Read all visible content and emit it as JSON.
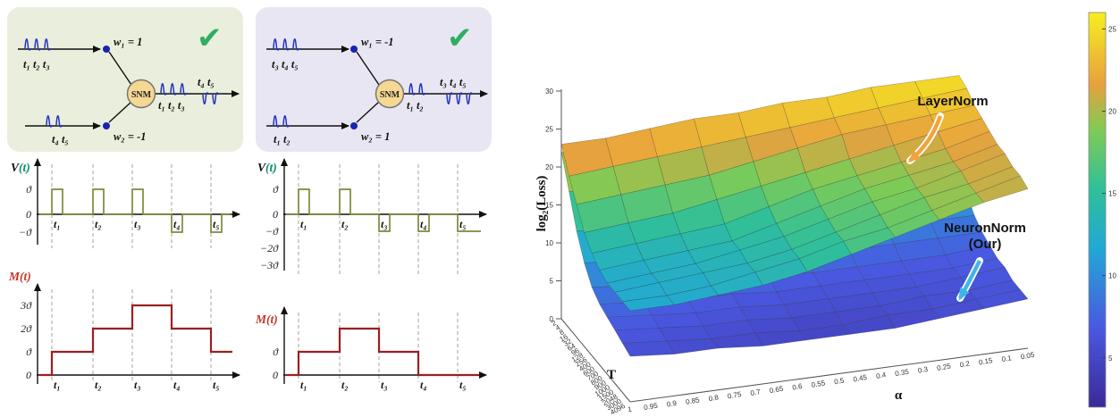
{
  "left": {
    "panels": [
      {
        "node": "SNM",
        "check": "✔",
        "in_top": "t₁ t₂ t₃",
        "in_bottom": "t₄ t₅",
        "w1": "w₁ = 1",
        "w2": "w₂ = -1",
        "out_up": "t₁ t₂ t₃",
        "out_down": "t₄ t₅"
      },
      {
        "node": "SNM",
        "check": "✔",
        "in_top": "t₃ t₄ t₅",
        "in_bottom": "t₁ t₂",
        "w1": "w₁ = -1",
        "w2": "w₂ = 1",
        "out_up": "t₁ t₂",
        "out_down": "t₃ t₄ t₅"
      }
    ],
    "v_plots": [
      {
        "label_main": "V",
        "label_paren": "(t)",
        "yticks": [
          "ϑ",
          "0",
          "−ϑ"
        ],
        "xticks": [
          "t₁",
          "t₂",
          "t₃",
          "t₄",
          "t₅"
        ],
        "pulses": [
          1,
          1,
          1,
          -1,
          -1
        ],
        "tail": 0
      },
      {
        "label_main": "V",
        "label_paren": "(t)",
        "yticks": [
          "ϑ",
          "0",
          "−ϑ",
          "−2ϑ",
          "−3ϑ"
        ],
        "xticks": [
          "t₁",
          "t₂",
          "t₃",
          "t₄",
          "t₅"
        ],
        "pulses": [
          1,
          1,
          -1,
          -1,
          -1
        ],
        "tail": -1
      }
    ],
    "m_plots": [
      {
        "label_main": "M",
        "label_paren": "(t)",
        "yticks": [
          "3ϑ",
          "2ϑ",
          "ϑ",
          "0"
        ],
        "xticks": [
          "t₁",
          "t₂",
          "t₃",
          "t₄",
          "t₅"
        ],
        "levels": [
          0,
          1,
          2,
          3,
          2,
          1
        ]
      },
      {
        "label_main": "M",
        "label_paren": "(t)",
        "yticks": [
          "ϑ",
          "0"
        ],
        "xticks": [
          "t₁",
          "t₂",
          "t₃",
          "t₄",
          "t₅"
        ],
        "levels": [
          0,
          1,
          2,
          1,
          0,
          0
        ]
      }
    ]
  },
  "chart_data": {
    "type": "surface",
    "title": "",
    "xlabel": "α",
    "ylabel": "T",
    "zlabel": "log₂(Loss)",
    "zlim": [
      0,
      30
    ],
    "z_ticks": [
      0,
      5,
      10,
      15,
      20,
      25,
      30
    ],
    "t_ticks": [
      "2",
      "4",
      "8",
      "16",
      "32",
      "64",
      "96",
      "128",
      "256",
      "400",
      "600",
      "700",
      "800",
      "900",
      "1000",
      "1500",
      "2048",
      "3000",
      "4096"
    ],
    "alpha_ticks": [
      "1",
      "0.95",
      "0.9",
      "0.85",
      "0.8",
      "0.75",
      "0.7",
      "0.65",
      "0.6",
      "0.55",
      "0.5",
      "0.45",
      "0.4",
      "0.35",
      "0.3",
      "0.25",
      "0.2",
      "0.15",
      "0.1",
      "0.05"
    ],
    "colorbar_ticks": [
      5,
      10,
      15,
      20,
      25
    ],
    "series": [
      {
        "name": "LayerNorm",
        "grid": [
          [
            23,
            23,
            23.5,
            24,
            24,
            24.5,
            24.5,
            25,
            25,
            25
          ],
          [
            20,
            20.5,
            21,
            21.5,
            22,
            22.5,
            23,
            23.5,
            24,
            24.5
          ],
          [
            17.5,
            18,
            18.5,
            19,
            20,
            21,
            22,
            22.5,
            23,
            23.5
          ],
          [
            15,
            15.5,
            16,
            17,
            18,
            19,
            20,
            21,
            22,
            23
          ],
          [
            13.5,
            14,
            14.5,
            15,
            16.5,
            18,
            19,
            20,
            21,
            22.5
          ],
          [
            12.5,
            13,
            13.5,
            14,
            15.5,
            17,
            18.5,
            19.5,
            20.5,
            22
          ],
          [
            12,
            12.5,
            13,
            14,
            15,
            16.5,
            18,
            19,
            20.5,
            22
          ],
          [
            12,
            12.5,
            13,
            13.5,
            14.5,
            16,
            17.5,
            19,
            20,
            21.5
          ],
          [
            12,
            12,
            12.5,
            13.5,
            14.5,
            16,
            17,
            18.5,
            20,
            21.5
          ],
          [
            12,
            12,
            12.5,
            13,
            14,
            15.5,
            17,
            18.5,
            20,
            21
          ]
        ]
      },
      {
        "name": "NeuronNorm (Our)",
        "grid": [
          [
            22,
            21,
            20,
            19,
            18,
            17,
            16,
            15,
            14,
            13
          ],
          [
            18,
            17,
            16,
            15,
            14.5,
            13.5,
            12.5,
            12,
            11,
            10.5
          ],
          [
            14,
            13,
            12.5,
            12,
            11,
            10.5,
            10,
            9.5,
            9,
            9
          ],
          [
            11,
            10.5,
            10,
            9.5,
            9,
            8.5,
            8,
            8,
            8,
            8
          ],
          [
            9,
            8.5,
            8,
            8,
            7.5,
            7,
            7,
            7,
            7,
            7.5
          ],
          [
            8,
            7.5,
            7,
            7,
            6.5,
            6.5,
            6.5,
            6.5,
            6.5,
            7
          ],
          [
            7.5,
            7,
            6.5,
            6.5,
            6,
            6,
            6,
            6,
            6.5,
            7
          ],
          [
            7,
            6.5,
            6,
            6,
            5.5,
            5.5,
            5.5,
            6,
            6,
            6.5
          ],
          [
            6.5,
            6,
            5.5,
            5.5,
            5,
            5,
            5.5,
            5.5,
            6,
            6.5
          ],
          [
            6,
            5.5,
            5.5,
            5,
            5,
            5,
            5,
            5.5,
            6,
            6.5
          ]
        ]
      }
    ],
    "annotations": [
      {
        "lines": [
          "LayerNorm"
        ],
        "color": "#f2a33c"
      },
      {
        "lines": [
          "NeuronNorm",
          "(Our)"
        ],
        "color": "#3fb6e8"
      }
    ]
  }
}
